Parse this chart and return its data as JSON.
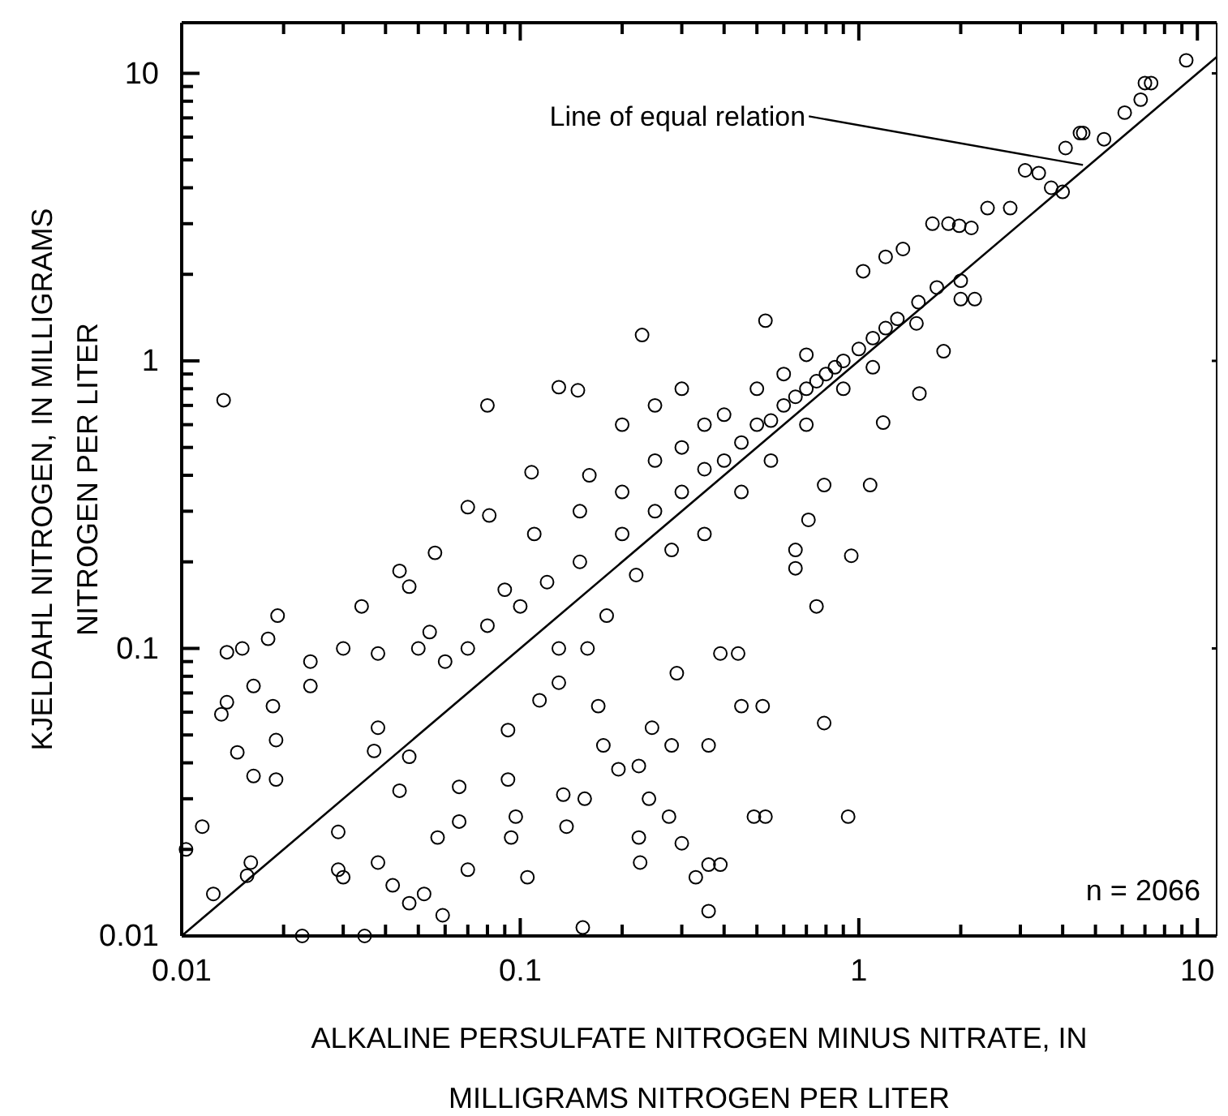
{
  "chart_data": {
    "type": "scatter",
    "xlabel": "ALKALINE PERSULFATE NITROGEN MINUS NITRATE, IN MILLIGRAMS NITROGEN PER LITER",
    "ylabel": "KJELDAHL NITROGEN, IN MILLIGRAMS NITROGEN PER LITER",
    "log": "xy",
    "grid": false,
    "xlim": [
      0.01,
      11.4
    ],
    "ylim": [
      0.01,
      15
    ],
    "xticks": [
      0.01,
      {
        "value": 0.02,
        "label": null
      },
      {
        "value": 0.03,
        "label": null
      },
      {
        "value": 0.04,
        "label": null
      },
      {
        "value": 0.05,
        "label": null
      },
      {
        "value": 0.06,
        "label": null
      },
      {
        "value": 0.07,
        "label": null
      },
      {
        "value": 0.08,
        "label": null
      },
      {
        "value": 0.09,
        "label": null
      },
      0.1,
      {
        "value": 0.2,
        "label": null
      },
      {
        "value": 0.3,
        "label": null
      },
      {
        "value": 0.4,
        "label": null
      },
      {
        "value": 0.5,
        "label": null
      },
      {
        "value": 0.6,
        "label": null
      },
      {
        "value": 0.7,
        "label": null
      },
      {
        "value": 0.8,
        "label": null
      },
      {
        "value": 0.9,
        "label": null
      },
      1,
      {
        "value": 2,
        "label": null
      },
      {
        "value": 3,
        "label": null
      },
      {
        "value": 4,
        "label": null
      },
      {
        "value": 5,
        "label": null
      },
      {
        "value": 6,
        "label": null
      },
      {
        "value": 7,
        "label": null
      },
      {
        "value": 8,
        "label": null
      },
      {
        "value": 9,
        "label": null
      },
      10
    ],
    "yticks": [
      0.01,
      {
        "value": 0.02,
        "label": null
      },
      {
        "value": 0.03,
        "label": null
      },
      {
        "value": 0.04,
        "label": null
      },
      {
        "value": 0.05,
        "label": null
      },
      {
        "value": 0.06,
        "label": null
      },
      {
        "value": 0.07,
        "label": null
      },
      {
        "value": 0.08,
        "label": null
      },
      {
        "value": 0.09,
        "label": null
      },
      0.1,
      {
        "value": 0.2,
        "label": null
      },
      {
        "value": 0.3,
        "label": null
      },
      {
        "value": 0.4,
        "label": null
      },
      {
        "value": 0.5,
        "label": null
      },
      {
        "value": 0.6,
        "label": null
      },
      {
        "value": 0.7,
        "label": null
      },
      {
        "value": 0.8,
        "label": null
      },
      {
        "value": 0.9,
        "label": null
      },
      1,
      {
        "value": 2,
        "label": null
      },
      {
        "value": 3,
        "label": null
      },
      {
        "value": 4,
        "label": null
      },
      {
        "value": 5,
        "label": null
      },
      {
        "value": 6,
        "label": null
      },
      {
        "value": 7,
        "label": null
      },
      {
        "value": 8,
        "label": null
      },
      {
        "value": 9,
        "label": null
      },
      10
    ],
    "annotations": [
      {
        "text": "Line of equal relation",
        "x": 4.8,
        "y": 4.8
      },
      "n = 2066"
    ],
    "series": [
      {
        "color": "#000000",
        "marker": "circle",
        "x": [
          0.0133,
          0.08,
          0.13,
          0.148,
          0.229,
          0.53,
          1.78,
          1.51,
          1.18,
          0.79,
          1.08,
          0.71,
          0.95,
          0.65,
          0.65,
          0.75,
          0.39,
          0.44,
          0.45,
          0.29,
          0.36,
          0.52,
          0.79,
          0.224,
          0.28,
          0.195,
          0.245,
          0.275,
          0.49,
          0.24,
          0.224,
          0.226,
          0.36,
          0.3,
          0.153,
          0.36,
          0.059,
          0.0227,
          0.0347,
          0.0124,
          0.0156,
          0.047,
          0.052,
          0.93,
          0.53,
          0.33,
          0.39,
          0.105,
          0.137,
          0.097,
          0.07,
          0.042,
          0.03,
          0.0115,
          0.0103,
          0.016,
          0.0131,
          0.0136,
          0.0136,
          0.0151,
          0.018,
          0.0192,
          0.0163,
          0.0146,
          0.0163,
          0.019,
          0.0186,
          0.019,
          0.024,
          0.024,
          0.03,
          0.034,
          0.044,
          0.047,
          0.038,
          0.038,
          0.037,
          0.047,
          0.066,
          0.066,
          0.057,
          0.044,
          0.038,
          0.029,
          0.029,
          0.054,
          0.056,
          0.07,
          0.081,
          0.108,
          0.092,
          0.092,
          0.094,
          0.134,
          0.155,
          0.176,
          0.114,
          0.13,
          0.17,
          0.158,
          9.27,
          7.0,
          7.3,
          6.8,
          6.1,
          5.3,
          4.5,
          4.08,
          4.6,
          4.0,
          3.7,
          3.1,
          3.4,
          2.8,
          2.4,
          1.98,
          2.15,
          1.84,
          2.0,
          2.2,
          2.0,
          1.48,
          1.03,
          1.2,
          1.35,
          1.65,
          0.2,
          0.25,
          0.3,
          0.35,
          0.4,
          0.45,
          0.5,
          0.55,
          0.6,
          0.65,
          0.7,
          0.75,
          0.8,
          0.85,
          0.9,
          1.0,
          1.1,
          1.2,
          1.3,
          1.5,
          1.7,
          0.15,
          0.12,
          0.1,
          0.08,
          0.3,
          0.25,
          0.4,
          0.5,
          0.6,
          0.7,
          0.35,
          0.45,
          0.55,
          0.7,
          0.9,
          1.1,
          0.2,
          0.15,
          0.18,
          0.22,
          0.28,
          0.13,
          0.09,
          0.07,
          0.06,
          0.05,
          0.11,
          0.16,
          0.2,
          0.3,
          0.25,
          0.35
        ],
        "values": [
          0.73,
          0.7,
          0.81,
          0.79,
          1.23,
          1.38,
          1.08,
          0.77,
          0.61,
          0.37,
          0.37,
          0.28,
          0.21,
          0.22,
          0.19,
          0.14,
          0.096,
          0.096,
          0.063,
          0.082,
          0.046,
          0.063,
          0.055,
          0.039,
          0.046,
          0.038,
          0.053,
          0.026,
          0.026,
          0.03,
          0.022,
          0.018,
          0.0177,
          0.021,
          0.0107,
          0.0122,
          0.0118,
          0.01,
          0.01,
          0.014,
          0.0162,
          0.013,
          0.014,
          0.026,
          0.026,
          0.016,
          0.0177,
          0.016,
          0.024,
          0.026,
          0.017,
          0.015,
          0.016,
          0.024,
          0.02,
          0.018,
          0.059,
          0.065,
          0.097,
          0.1,
          0.108,
          0.13,
          0.074,
          0.0435,
          0.036,
          0.035,
          0.063,
          0.048,
          0.09,
          0.074,
          0.1,
          0.14,
          0.186,
          0.164,
          0.096,
          0.053,
          0.044,
          0.042,
          0.033,
          0.025,
          0.022,
          0.032,
          0.018,
          0.023,
          0.017,
          0.114,
          0.215,
          0.31,
          0.29,
          0.41,
          0.052,
          0.035,
          0.022,
          0.031,
          0.03,
          0.046,
          0.066,
          0.076,
          0.063,
          0.1,
          11.1,
          9.25,
          9.25,
          8.1,
          7.3,
          5.9,
          6.2,
          5.5,
          6.2,
          3.87,
          4.0,
          4.6,
          4.5,
          3.4,
          3.4,
          2.95,
          2.9,
          3.0,
          1.64,
          1.64,
          1.9,
          1.35,
          2.05,
          2.3,
          2.45,
          3.0,
          0.25,
          0.3,
          0.35,
          0.42,
          0.45,
          0.52,
          0.6,
          0.62,
          0.7,
          0.75,
          0.8,
          0.85,
          0.9,
          0.95,
          1.0,
          1.1,
          1.2,
          1.3,
          1.4,
          1.6,
          1.8,
          0.2,
          0.17,
          0.14,
          0.12,
          0.5,
          0.45,
          0.65,
          0.8,
          0.9,
          1.05,
          0.25,
          0.35,
          0.45,
          0.6,
          0.8,
          0.95,
          0.35,
          0.3,
          0.13,
          0.18,
          0.22,
          0.1,
          0.16,
          0.1,
          0.09,
          0.1,
          0.25,
          0.4,
          0.6,
          0.8,
          0.7,
          0.6
        ]
      },
      {
        "type": "line",
        "color": "#000000",
        "marker": "none",
        "x": [
          0.01,
          11.4
        ],
        "values": [
          0.01,
          11.4
        ]
      }
    ]
  }
}
